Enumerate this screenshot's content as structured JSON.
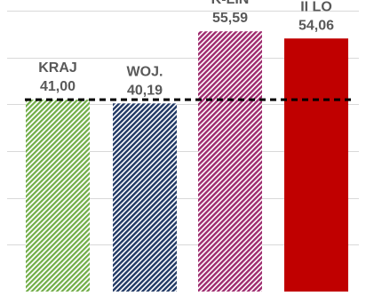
{
  "chart_data": {
    "type": "bar",
    "title": "",
    "xlabel": "",
    "ylabel": "",
    "categories": [
      "KRAJ",
      "WOJ.",
      "K-LIN",
      "II LO"
    ],
    "values": [
      41.0,
      40.19,
      55.59,
      54.06
    ],
    "value_labels": [
      "41,00",
      "40,19",
      "55,59",
      "54,06"
    ],
    "reference_line": {
      "value": 41.0,
      "style": "dashed",
      "color": "#000000"
    },
    "ylim": [
      0,
      60
    ],
    "grid": true,
    "legend": "none",
    "colors": {
      "KRAJ": "#70ad47",
      "WOJ.": "#203864",
      "K-LIN": "#9e2a6e",
      "II LO": "#c00000"
    },
    "patterns": {
      "KRAJ": "diagonal-hatch",
      "WOJ.": "diagonal-hatch",
      "K-LIN": "diagonal-hatch",
      "II LO": "solid"
    },
    "gridline_color": "#d9d9d9"
  }
}
